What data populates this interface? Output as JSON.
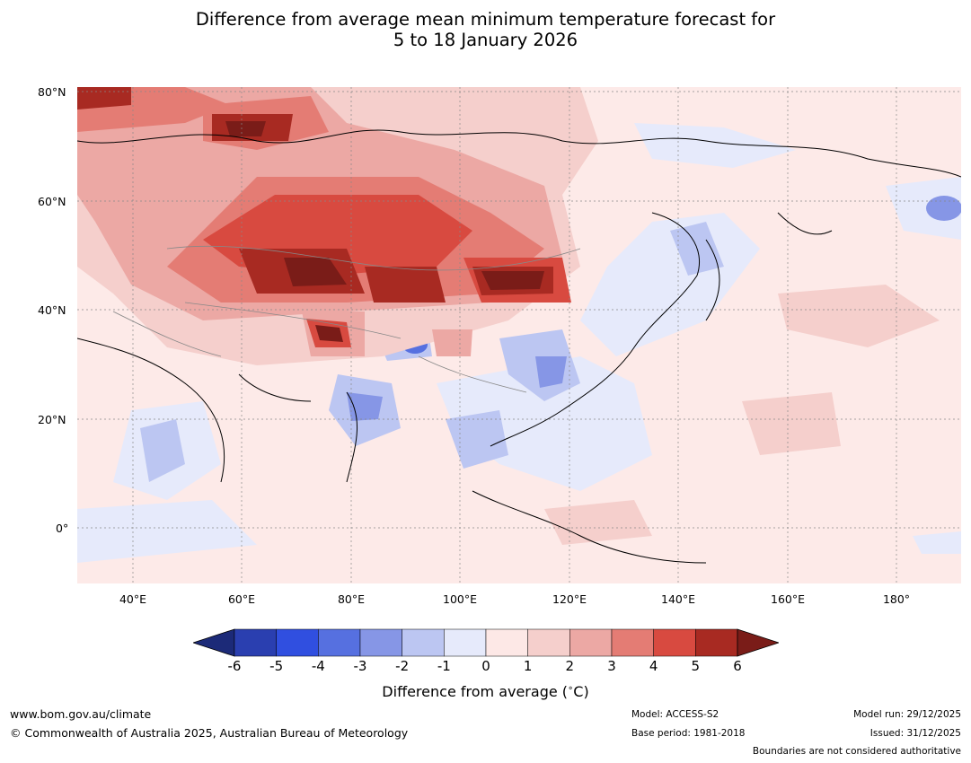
{
  "title": {
    "line1": "Difference from average mean minimum temperature forecast for",
    "line2": "5 to 18 January 2026"
  },
  "map": {
    "lat_labels": [
      "80°N",
      "60°N",
      "40°N",
      "20°N",
      "0°"
    ],
    "lon_labels": [
      "40°E",
      "60°E",
      "80°E",
      "100°E",
      "120°E",
      "140°E",
      "160°E",
      "180°"
    ]
  },
  "colorbar": {
    "ticks": [
      "-6",
      "-5",
      "-4",
      "-3",
      "-2",
      "-1",
      "0",
      "1",
      "2",
      "3",
      "4",
      "5",
      "6"
    ],
    "colors": [
      "#1c2a78",
      "#2a3fb0",
      "#304fe0",
      "#5670e0",
      "#8696e6",
      "#bcc6f2",
      "#e6eafb",
      "#fde8e6",
      "#f5cfcc",
      "#eca8a4",
      "#e47c74",
      "#d84a40",
      "#a82a22",
      "#7a1c18"
    ],
    "label": "Difference from average ($^\\circ$C)"
  },
  "footer": {
    "website": "www.bom.gov.au/climate",
    "copyright": "© Commonwealth of Australia 2025, Australian Bureau of Meteorology",
    "model": "Model: ACCESS-S2",
    "base_period": "Base period: 1981-2018",
    "model_run": "Model run: 29/12/2025",
    "issued": "Issued: 31/12/2025",
    "disclaimer": "Boundaries are not considered authoritative"
  }
}
